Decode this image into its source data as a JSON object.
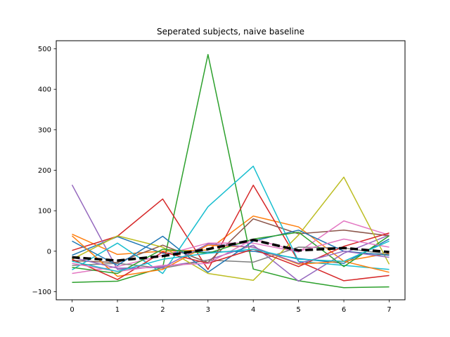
{
  "chart_data": {
    "type": "line",
    "title": "Seperated subjects, naive baseline",
    "xlabel": "",
    "ylabel": "",
    "x": [
      0,
      1,
      2,
      3,
      4,
      5,
      6,
      7
    ],
    "xlim": [
      -0.35,
      7.35
    ],
    "ylim": [
      -120,
      520
    ],
    "xticks": [
      0,
      1,
      2,
      3,
      4,
      5,
      6,
      7
    ],
    "yticks": [
      -100,
      0,
      100,
      200,
      300,
      400,
      500
    ],
    "grid": false,
    "legend": "none",
    "series": [
      {
        "color": "#1f77b4",
        "values": [
          -10,
          36,
          -5,
          -2,
          0,
          -18,
          -30,
          30
        ]
      },
      {
        "color": "#ff7f0e",
        "values": [
          42,
          -8,
          0,
          3,
          87,
          60,
          -25,
          -5
        ]
      },
      {
        "color": "#2ca02c",
        "values": [
          -77,
          -74,
          -40,
          486,
          -44,
          -73,
          -90,
          -88
        ]
      },
      {
        "color": "#d62728",
        "values": [
          2,
          37,
          129,
          -45,
          163,
          -25,
          -73,
          -60
        ]
      },
      {
        "color": "#9467bd",
        "values": [
          164,
          -45,
          -38,
          -22,
          15,
          -74,
          -5,
          40
        ]
      },
      {
        "color": "#8c564b",
        "values": [
          -23,
          -28,
          15,
          -28,
          80,
          43,
          52,
          38
        ]
      },
      {
        "color": "#e377c2",
        "values": [
          -55,
          -38,
          -10,
          20,
          20,
          -2,
          75,
          40
        ]
      },
      {
        "color": "#7f7f7f",
        "values": [
          -35,
          -30,
          -42,
          -22,
          -27,
          10,
          8,
          -8
        ]
      },
      {
        "color": "#bcbd22",
        "values": [
          -20,
          38,
          10,
          -55,
          -72,
          40,
          183,
          -32
        ]
      },
      {
        "color": "#17becf",
        "values": [
          -46,
          20,
          -55,
          110,
          210,
          -25,
          -35,
          -45
        ]
      },
      {
        "color": "#1f77b4",
        "values": [
          25,
          -35,
          37,
          -52,
          25,
          52,
          0,
          -10
        ]
      },
      {
        "color": "#ff7f0e",
        "values": [
          38,
          -62,
          -45,
          15,
          10,
          -32,
          -25,
          -52
        ]
      },
      {
        "color": "#2ca02c",
        "values": [
          -40,
          -55,
          5,
          -5,
          30,
          47,
          -38,
          38
        ]
      },
      {
        "color": "#d62728",
        "values": [
          -20,
          -70,
          -2,
          -30,
          5,
          -38,
          12,
          45
        ]
      },
      {
        "color": "#9467bd",
        "values": [
          -15,
          -42,
          -40,
          18,
          10,
          -30,
          0,
          -15
        ]
      },
      {
        "color": "#e377c2",
        "values": [
          -30,
          -50,
          -35,
          -30,
          30,
          0,
          30,
          10
        ]
      },
      {
        "color": "#17becf",
        "values": [
          -25,
          -50,
          -20,
          -5,
          5,
          -20,
          -25,
          25
        ]
      },
      {
        "color": "#000000",
        "dashed": true,
        "width": 3.5,
        "values": [
          -15,
          -23,
          -12,
          5,
          28,
          2,
          8,
          -2
        ]
      }
    ]
  }
}
